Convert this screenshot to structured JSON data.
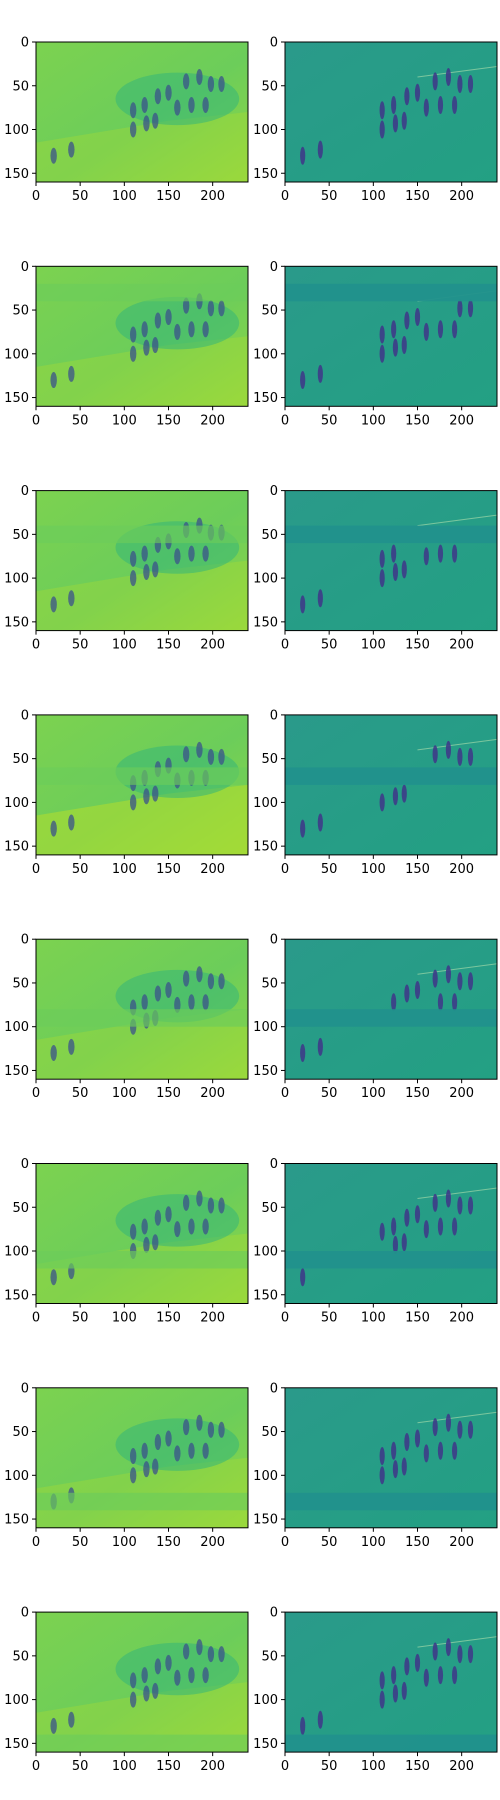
{
  "figure": {
    "rows": 8,
    "cols": 2,
    "colormap": "viridis",
    "background": "#ffffff"
  },
  "chart_data": {
    "type": "heatmap",
    "image_shape": {
      "height": 160,
      "width": 240
    },
    "xlim": [
      0,
      240
    ],
    "ylim": [
      160,
      0
    ],
    "xticks": [
      0,
      50,
      100,
      150,
      200
    ],
    "yticks": [
      0,
      50,
      100,
      150
    ],
    "xtick_labels": [
      "0",
      "50",
      "100",
      "150",
      "200"
    ],
    "ytick_labels": [
      "0",
      "50",
      "100",
      "150"
    ],
    "title": "",
    "xlabel": "",
    "ylabel": "",
    "panels": [
      {
        "row": 1,
        "left": "reconstruction",
        "right": "residual / masked image",
        "masked_band_y": null
      },
      {
        "row": 2,
        "left": "reconstruction",
        "right": "residual / masked image",
        "masked_band_y": [
          20,
          40
        ]
      },
      {
        "row": 3,
        "left": "reconstruction",
        "right": "residual / masked image",
        "masked_band_y": [
          40,
          60
        ]
      },
      {
        "row": 4,
        "left": "reconstruction",
        "right": "residual / masked image",
        "masked_band_y": [
          60,
          80
        ]
      },
      {
        "row": 5,
        "left": "reconstruction",
        "right": "residual / masked image",
        "masked_band_y": [
          80,
          100
        ]
      },
      {
        "row": 6,
        "left": "reconstruction",
        "right": "residual / masked image",
        "masked_band_y": [
          100,
          120
        ]
      },
      {
        "row": 7,
        "left": "reconstruction",
        "right": "residual / masked image",
        "masked_band_y": [
          120,
          140
        ]
      },
      {
        "row": 8,
        "left": "reconstruction",
        "right": "residual / masked image",
        "masked_band_y": [
          140,
          160
        ]
      }
    ]
  }
}
